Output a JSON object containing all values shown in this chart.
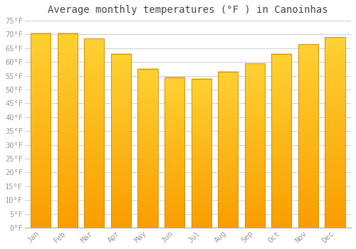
{
  "title": "Average monthly temperatures (°F ) in Canoinhas",
  "months": [
    "Jan",
    "Feb",
    "Mar",
    "Apr",
    "May",
    "Jun",
    "Jul",
    "Aug",
    "Sep",
    "Oct",
    "Nov",
    "Dec"
  ],
  "values": [
    70.5,
    70.5,
    68.5,
    63,
    57.5,
    54.5,
    54,
    56.5,
    59.5,
    63,
    66.5,
    69
  ],
  "bar_color_top": "#FFCC33",
  "bar_color_bottom": "#F5A800",
  "bar_color_edge": "#CC8800",
  "ylim": [
    0,
    75
  ],
  "yticks": [
    0,
    5,
    10,
    15,
    20,
    25,
    30,
    35,
    40,
    45,
    50,
    55,
    60,
    65,
    70,
    75
  ],
  "ytick_labels": [
    "0°F",
    "5°F",
    "10°F",
    "15°F",
    "20°F",
    "25°F",
    "30°F",
    "35°F",
    "40°F",
    "45°F",
    "50°F",
    "55°F",
    "60°F",
    "65°F",
    "70°F",
    "75°F"
  ],
  "background_color": "#ffffff",
  "grid_color": "#cccccc",
  "title_fontsize": 10,
  "tick_fontsize": 7.5,
  "tick_color": "#999999",
  "title_color": "#444444",
  "bar_width": 0.75
}
